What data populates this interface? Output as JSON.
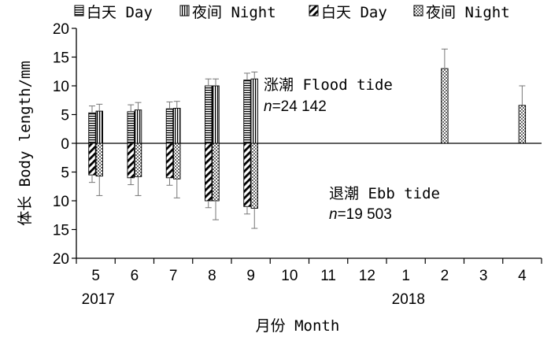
{
  "chart_data": {
    "type": "bar",
    "title": "",
    "xlabel": "月份 Month",
    "ylabel": "体长 Body length/mm",
    "categories": [
      "5",
      "6",
      "7",
      "8",
      "9",
      "10",
      "11",
      "12",
      "1",
      "2",
      "3",
      "4"
    ],
    "years": [
      {
        "label": "2017",
        "under_category": "5"
      },
      {
        "label": "2018",
        "under_category": "1"
      }
    ],
    "ylim": [
      -20,
      20
    ],
    "y_ticks": [
      20,
      15,
      10,
      5,
      0,
      5,
      10,
      15,
      20
    ],
    "legend": {
      "placement": "top",
      "entries": [
        {
          "label": "白天 Day",
          "pattern": "hstripe"
        },
        {
          "label": "夜间 Night",
          "pattern": "vstripe"
        },
        {
          "label": "白天 Day",
          "pattern": "diagonal"
        },
        {
          "label": "夜间 Night",
          "pattern": "dots"
        }
      ]
    },
    "series": [
      {
        "name": "白天 Day",
        "tide": "flood",
        "pattern": "hstripe",
        "values": [
          5.3,
          5.5,
          6.0,
          10.0,
          11.0,
          null,
          null,
          null,
          null,
          null,
          null,
          null
        ],
        "errors": [
          1.2,
          1.2,
          1.2,
          1.2,
          1.2,
          null,
          null,
          null,
          null,
          null,
          null,
          null
        ]
      },
      {
        "name": "夜间 Night",
        "tide": "flood",
        "pattern": "vstripe",
        "values": [
          5.6,
          5.8,
          6.1,
          10.0,
          11.2,
          null,
          null,
          null,
          null,
          null,
          null,
          null
        ],
        "errors": [
          1.2,
          1.3,
          1.2,
          1.2,
          1.2,
          null,
          null,
          null,
          null,
          null,
          null,
          null
        ]
      },
      {
        "name": "夜间 Night",
        "tide": "flood",
        "pattern": "dots",
        "values": [
          null,
          null,
          null,
          null,
          null,
          null,
          null,
          null,
          null,
          13.0,
          null,
          6.6
        ],
        "errors": [
          null,
          null,
          null,
          null,
          null,
          null,
          null,
          null,
          null,
          3.4,
          null,
          3.4
        ]
      },
      {
        "name": "白天 Day",
        "tide": "ebb",
        "pattern": "diagonal",
        "values": [
          -5.5,
          -6.0,
          -6.0,
          -10.0,
          -11.0,
          null,
          null,
          null,
          null,
          null,
          null,
          null
        ],
        "errors": [
          1.3,
          1.2,
          1.3,
          1.2,
          1.3,
          null,
          null,
          null,
          null,
          null,
          null,
          null
        ]
      },
      {
        "name": "夜间 Night",
        "tide": "ebb",
        "pattern": "dots",
        "values": [
          -5.7,
          -5.8,
          -6.2,
          -10.0,
          -11.3,
          null,
          null,
          null,
          null,
          null,
          null,
          null
        ],
        "errors": [
          3.4,
          3.3,
          3.3,
          3.3,
          3.5,
          null,
          null,
          null,
          null,
          null,
          null,
          null
        ]
      }
    ],
    "annotations": [
      {
        "id": "flood",
        "text": "涨潮 Flood tide",
        "n_label": "n",
        "n_value": "=24 142"
      },
      {
        "id": "ebb",
        "text": "退潮 Ebb tide",
        "n_label": "n",
        "n_value": "=19 503"
      }
    ],
    "grid": false
  }
}
